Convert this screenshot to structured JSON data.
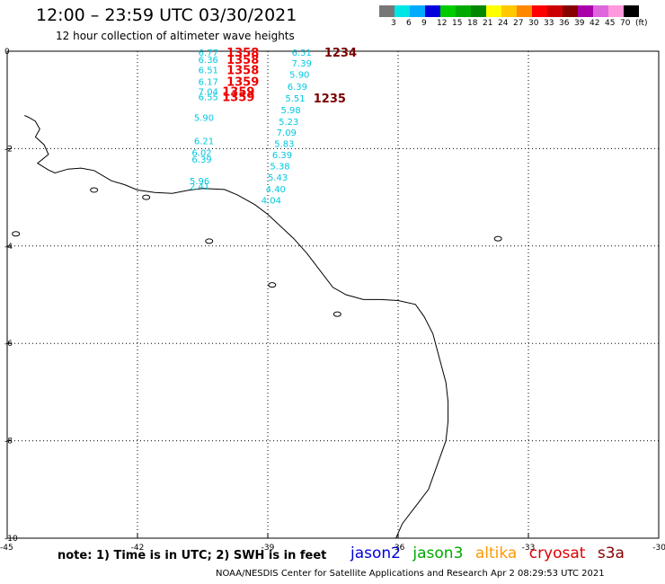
{
  "header": {
    "title": "12:00 – 23:59 UTC 03/30/2021",
    "subtitle": "12 hour collection of altimeter wave heights"
  },
  "scale": {
    "colors": [
      "#777777",
      "#00e6e6",
      "#00aaff",
      "#0000dd",
      "#00cc00",
      "#00aa00",
      "#008800",
      "#ffff00",
      "#ffc800",
      "#ff8800",
      "#ff0000",
      "#cc0000",
      "#880000",
      "#aa00aa",
      "#dd66dd",
      "#ff99dd",
      "#000000"
    ],
    "labels": [
      "3",
      "6",
      "9",
      "12",
      "15",
      "18",
      "21",
      "24",
      "27",
      "30",
      "33",
      "36",
      "39",
      "42",
      "45",
      "70",
      "(ft)"
    ]
  },
  "map": {
    "lon_ticks": [
      "-45",
      "-42",
      "-39",
      "-36",
      "-33",
      "-30"
    ],
    "lat_ticks": [
      "0",
      "-2",
      "-4",
      "-6",
      "-8",
      "-10"
    ],
    "lon_range": [
      -45,
      -30
    ],
    "lat_range": [
      -10,
      0
    ],
    "swh_color": "#00c8e0",
    "swh_values": [
      {
        "lon": -40.6,
        "lat": -0.02,
        "v": "6.77"
      },
      {
        "lon": -40.6,
        "lat": -0.17,
        "v": "6.36"
      },
      {
        "lon": -40.6,
        "lat": -0.38,
        "v": "6.51"
      },
      {
        "lon": -40.6,
        "lat": -0.62,
        "v": "6.17"
      },
      {
        "lon": -40.6,
        "lat": -0.82,
        "v": "7.04"
      },
      {
        "lon": -40.6,
        "lat": -0.93,
        "v": "6.55"
      },
      {
        "lon": -40.7,
        "lat": -1.36,
        "v": "5.90"
      },
      {
        "lon": -40.7,
        "lat": -1.84,
        "v": "6.21"
      },
      {
        "lon": -40.75,
        "lat": -2.08,
        "v": "6.02"
      },
      {
        "lon": -40.75,
        "lat": -2.21,
        "v": "6.39"
      },
      {
        "lon": -40.8,
        "lat": -2.66,
        "v": "5.96"
      },
      {
        "lon": -40.8,
        "lat": -2.77,
        "v": "2.41"
      },
      {
        "lon": -38.45,
        "lat": -0.02,
        "v": "6.51"
      },
      {
        "lon": -38.45,
        "lat": -0.24,
        "v": "7.39"
      },
      {
        "lon": -38.5,
        "lat": -0.47,
        "v": "5.90"
      },
      {
        "lon": -38.55,
        "lat": -0.72,
        "v": "6.39"
      },
      {
        "lon": -38.6,
        "lat": -0.96,
        "v": "5.51"
      },
      {
        "lon": -38.7,
        "lat": -1.2,
        "v": "5.98"
      },
      {
        "lon": -38.75,
        "lat": -1.44,
        "v": "5.23"
      },
      {
        "lon": -38.8,
        "lat": -1.66,
        "v": "7.09"
      },
      {
        "lon": -38.85,
        "lat": -1.89,
        "v": "5.83"
      },
      {
        "lon": -38.9,
        "lat": -2.12,
        "v": "6.39"
      },
      {
        "lon": -38.95,
        "lat": -2.35,
        "v": "5.38"
      },
      {
        "lon": -39.0,
        "lat": -2.58,
        "v": "5.43"
      },
      {
        "lon": -39.05,
        "lat": -2.82,
        "v": "4.40"
      },
      {
        "lon": -39.15,
        "lat": -3.05,
        "v": "4.04"
      }
    ],
    "time_labels": [
      {
        "lon": -39.95,
        "lat": -0.02,
        "v": "1358",
        "color": "#ee0000"
      },
      {
        "lon": -39.95,
        "lat": -0.17,
        "v": "1358",
        "color": "#ee0000"
      },
      {
        "lon": -39.95,
        "lat": -0.38,
        "v": "1358",
        "color": "#ee0000"
      },
      {
        "lon": -39.95,
        "lat": -0.62,
        "v": "1359",
        "color": "#ee0000"
      },
      {
        "lon": -40.05,
        "lat": -0.82,
        "v": "1359",
        "color": "#ee0000"
      },
      {
        "lon": -40.05,
        "lat": -0.93,
        "v": "1359",
        "color": "#ee0000"
      },
      {
        "lon": -37.7,
        "lat": -0.02,
        "v": "1234",
        "color": "#7a0000"
      },
      {
        "lon": -37.95,
        "lat": -0.96,
        "v": "1235",
        "color": "#7a0000"
      }
    ],
    "coast": [
      [
        -44.6,
        -1.32
      ],
      [
        -44.5,
        -1.36
      ],
      [
        -44.35,
        -1.44
      ],
      [
        -44.25,
        -1.6
      ],
      [
        -44.35,
        -1.76
      ],
      [
        -44.15,
        -1.92
      ],
      [
        -44.05,
        -2.12
      ],
      [
        -44.3,
        -2.3
      ],
      [
        -44.05,
        -2.44
      ],
      [
        -43.9,
        -2.5
      ],
      [
        -43.6,
        -2.42
      ],
      [
        -43.3,
        -2.4
      ],
      [
        -43.0,
        -2.45
      ],
      [
        -42.6,
        -2.66
      ],
      [
        -42.3,
        -2.74
      ],
      [
        -42.0,
        -2.85
      ],
      [
        -41.6,
        -2.9
      ],
      [
        -41.2,
        -2.92
      ],
      [
        -40.8,
        -2.85
      ],
      [
        -40.5,
        -2.82
      ],
      [
        -40.0,
        -2.84
      ],
      [
        -39.7,
        -2.95
      ],
      [
        -39.3,
        -3.15
      ],
      [
        -39.0,
        -3.35
      ],
      [
        -38.7,
        -3.6
      ],
      [
        -38.4,
        -3.85
      ],
      [
        -38.1,
        -4.15
      ],
      [
        -37.8,
        -4.5
      ],
      [
        -37.5,
        -4.85
      ],
      [
        -37.2,
        -5.0
      ],
      [
        -36.8,
        -5.1
      ],
      [
        -36.4,
        -5.1
      ],
      [
        -36.0,
        -5.12
      ],
      [
        -35.6,
        -5.2
      ],
      [
        -35.4,
        -5.45
      ],
      [
        -35.2,
        -5.8
      ],
      [
        -35.05,
        -6.3
      ],
      [
        -34.9,
        -6.8
      ],
      [
        -34.85,
        -7.2
      ],
      [
        -34.85,
        -7.6
      ],
      [
        -34.9,
        -8.0
      ],
      [
        -35.1,
        -8.5
      ],
      [
        -35.3,
        -9.0
      ],
      [
        -35.6,
        -9.35
      ],
      [
        -35.9,
        -9.7
      ],
      [
        -36.05,
        -10.0
      ]
    ],
    "islands": [
      {
        "lon": -40.35,
        "lat": -3.9
      },
      {
        "lon": -38.9,
        "lat": -4.8
      },
      {
        "lon": -37.4,
        "lat": -5.4
      },
      {
        "lon": -33.7,
        "lat": -3.85
      },
      {
        "lon": -44.8,
        "lat": -3.75
      },
      {
        "lon": -43.0,
        "lat": -2.85
      },
      {
        "lon": -41.8,
        "lat": -3.0
      }
    ]
  },
  "footer": {
    "note": "note: 1) Time is in UTC; 2) SWH is in feet",
    "sat1": "jason2",
    "sat2": "jason3",
    "sat3": "altika",
    "sat4": "cryosat",
    "sat5": "s3a",
    "credit": "NOAA/NESDIS Center for Satellite Applications and Research    Apr  2 08:29:53 UTC 2021"
  }
}
